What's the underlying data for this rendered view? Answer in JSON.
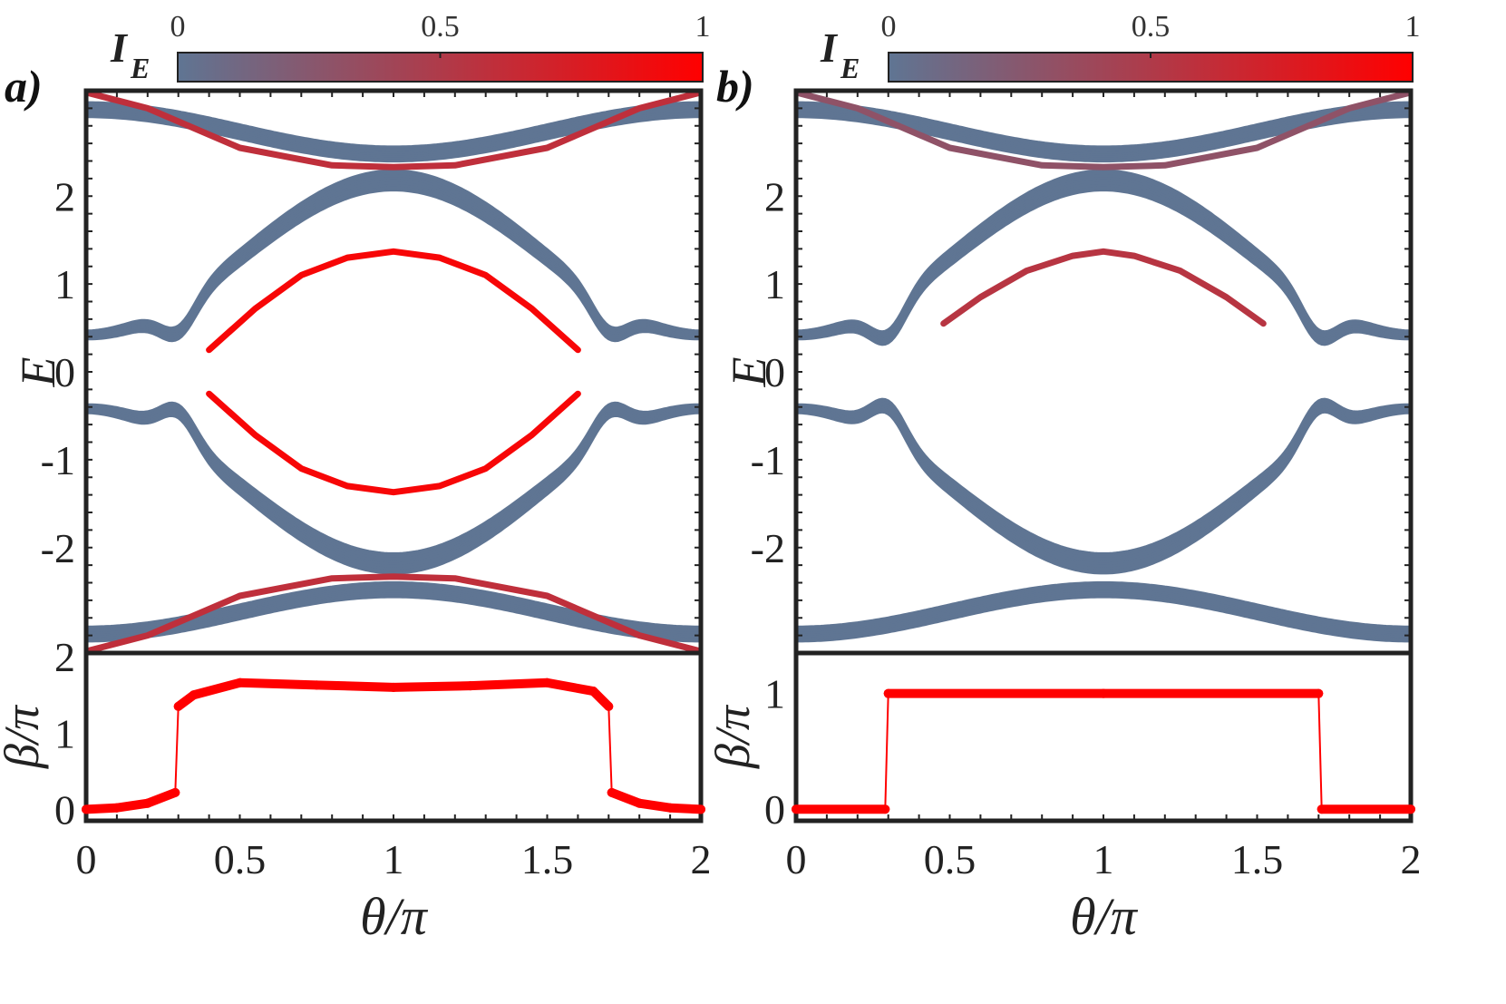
{
  "colors": {
    "low": "#5f7593",
    "high": "#ff0000",
    "frame": "#222222",
    "beta_line": "#ff0000"
  },
  "chart_data": [
    {
      "panel": "a)",
      "type": "line",
      "colorbar": {
        "label": "I",
        "label_sub": "E",
        "ticks": [
          "0",
          "0.5",
          "1"
        ],
        "range": [
          0,
          1
        ]
      },
      "top": {
        "ylabel": "E",
        "yticks": [
          "-2",
          "-1",
          "0",
          "1",
          "2"
        ],
        "ylim": [
          -3.2,
          3.2
        ],
        "bands": [
          {
            "name": "top bulk",
            "kind": "cosine",
            "base": 2.58,
            "amp": 0.42,
            "width": 0.16,
            "intensity": 0
          },
          {
            "name": "upper middle bulk",
            "kind": "dome",
            "lo": 0.42,
            "hi": 2.18,
            "gap_lo": 0.05,
            "width": 0.22,
            "intensity": 0
          },
          {
            "name": "lower middle bulk",
            "kind": "dome",
            "lo": -0.42,
            "hi": -2.18,
            "gap_lo": -0.05,
            "width": 0.22,
            "intensity": 0
          },
          {
            "name": "bottom bulk",
            "kind": "cosine",
            "base": -2.58,
            "amp": -0.42,
            "width": 0.16,
            "intensity": 0
          }
        ],
        "edge_states": [
          {
            "name": "upper edge state",
            "points": [
              [
                0.0,
                3.18
              ],
              [
                0.2,
                3.0
              ],
              [
                0.5,
                2.55
              ],
              [
                0.8,
                2.35
              ],
              [
                1.0,
                2.33
              ],
              [
                1.2,
                2.35
              ],
              [
                1.5,
                2.55
              ],
              [
                1.8,
                3.0
              ],
              [
                2.0,
                3.18
              ]
            ],
            "intensity": 0.6
          },
          {
            "name": "inner upper edge state",
            "points": [
              [
                0.4,
                0.25
              ],
              [
                0.55,
                0.72
              ],
              [
                0.7,
                1.1
              ],
              [
                0.85,
                1.3
              ],
              [
                1.0,
                1.37
              ],
              [
                1.15,
                1.3
              ],
              [
                1.3,
                1.1
              ],
              [
                1.45,
                0.72
              ],
              [
                1.6,
                0.25
              ]
            ],
            "intensity": 0.95
          },
          {
            "name": "inner lower edge state",
            "points": [
              [
                0.4,
                -0.25
              ],
              [
                0.55,
                -0.72
              ],
              [
                0.7,
                -1.1
              ],
              [
                0.85,
                -1.3
              ],
              [
                1.0,
                -1.37
              ],
              [
                1.15,
                -1.3
              ],
              [
                1.3,
                -1.1
              ],
              [
                1.45,
                -0.72
              ],
              [
                1.6,
                -0.25
              ]
            ],
            "intensity": 0.95
          },
          {
            "name": "lower edge state",
            "points": [
              [
                0.0,
                -3.18
              ],
              [
                0.2,
                -3.0
              ],
              [
                0.5,
                -2.55
              ],
              [
                0.8,
                -2.35
              ],
              [
                1.0,
                -2.33
              ],
              [
                1.2,
                -2.35
              ],
              [
                1.5,
                -2.55
              ],
              [
                1.8,
                -3.0
              ],
              [
                2.0,
                -3.18
              ]
            ],
            "intensity": 0.6
          }
        ]
      },
      "bottom": {
        "ylabel": "β/π",
        "yticks": [
          "0",
          "1",
          "2"
        ],
        "ylim": [
          -0.15,
          2.05
        ],
        "points": [
          [
            0.0,
            0.0
          ],
          [
            0.1,
            0.02
          ],
          [
            0.2,
            0.08
          ],
          [
            0.29,
            0.22
          ],
          [
            0.3,
            1.35
          ],
          [
            0.35,
            1.5
          ],
          [
            0.5,
            1.66
          ],
          [
            0.75,
            1.63
          ],
          [
            1.0,
            1.6
          ],
          [
            1.25,
            1.62
          ],
          [
            1.5,
            1.66
          ],
          [
            1.65,
            1.55
          ],
          [
            1.7,
            1.35
          ],
          [
            1.71,
            0.22
          ],
          [
            1.8,
            0.08
          ],
          [
            1.9,
            0.02
          ],
          [
            2.0,
            0.0
          ]
        ]
      },
      "xlabel": "θ/π",
      "xticks": [
        "0",
        "0.5",
        "1",
        "1.5",
        "2"
      ],
      "xlim": [
        0,
        2
      ]
    },
    {
      "panel": "b)",
      "type": "line",
      "colorbar": {
        "label": "I",
        "label_sub": "E",
        "ticks": [
          "0",
          "0.5",
          "1"
        ],
        "range": [
          0,
          1
        ]
      },
      "top": {
        "ylabel": "E",
        "yticks": [
          "-2",
          "-1",
          "0",
          "1",
          "2"
        ],
        "ylim": [
          -3.2,
          3.2
        ],
        "bands": [
          {
            "name": "top bulk",
            "kind": "cosine",
            "base": 2.58,
            "amp": 0.42,
            "width": 0.16,
            "intensity": 0
          },
          {
            "name": "upper middle bulk",
            "kind": "dome",
            "lo": 0.42,
            "hi": 2.18,
            "gap_lo": 0.0,
            "width": 0.22,
            "intensity": 0
          },
          {
            "name": "lower middle bulk",
            "kind": "dome",
            "lo": -0.42,
            "hi": -2.18,
            "gap_lo": 0.0,
            "width": 0.22,
            "intensity": 0
          },
          {
            "name": "bottom bulk",
            "kind": "cosine",
            "base": -2.58,
            "amp": -0.42,
            "width": 0.16,
            "intensity": 0
          }
        ],
        "edge_states": [
          {
            "name": "upper edge state",
            "points": [
              [
                0.0,
                3.18
              ],
              [
                0.2,
                3.0
              ],
              [
                0.5,
                2.55
              ],
              [
                0.8,
                2.35
              ],
              [
                1.0,
                2.33
              ],
              [
                1.2,
                2.35
              ],
              [
                1.5,
                2.55
              ],
              [
                1.8,
                3.0
              ],
              [
                2.0,
                3.18
              ]
            ],
            "intensity": 0.3
          },
          {
            "name": "inner upper edge state",
            "points": [
              [
                0.48,
                0.55
              ],
              [
                0.6,
                0.85
              ],
              [
                0.75,
                1.15
              ],
              [
                0.9,
                1.32
              ],
              [
                1.0,
                1.37
              ],
              [
                1.1,
                1.32
              ],
              [
                1.25,
                1.15
              ],
              [
                1.4,
                0.85
              ],
              [
                1.52,
                0.55
              ]
            ],
            "intensity": 0.55
          }
        ]
      },
      "bottom": {
        "ylabel": "β/π",
        "yticks": [
          "0",
          "1"
        ],
        "ylim": [
          -0.1,
          1.35
        ],
        "points": [
          [
            0.0,
            0.0
          ],
          [
            0.29,
            0.0
          ],
          [
            0.3,
            1.0
          ],
          [
            1.0,
            1.0
          ],
          [
            1.7,
            1.0
          ],
          [
            1.71,
            0.0
          ],
          [
            2.0,
            0.0
          ]
        ]
      },
      "xlabel": "θ/π",
      "xticks": [
        "0",
        "0.5",
        "1",
        "1.5",
        "2"
      ],
      "xlim": [
        0,
        2
      ]
    }
  ]
}
